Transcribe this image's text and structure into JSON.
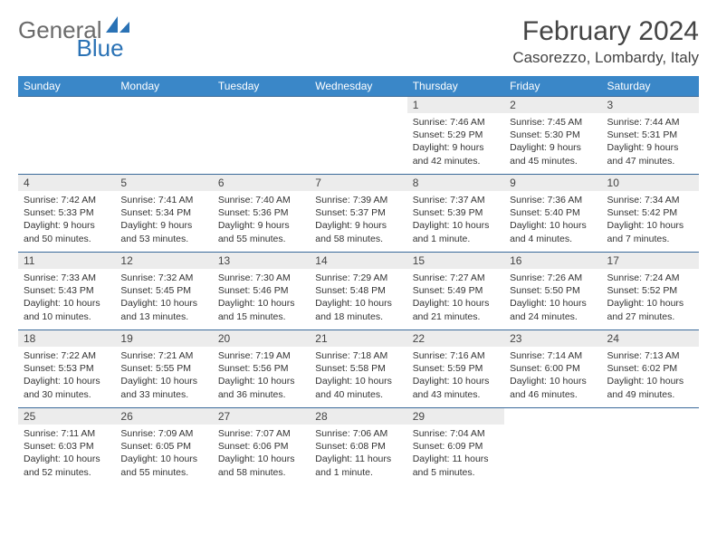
{
  "brand": {
    "part1": "General",
    "part2": "Blue"
  },
  "title": "February 2024",
  "location": "Casorezzo, Lombardy, Italy",
  "header_bg": "#3a87c8",
  "border_color": "#3a6a9a",
  "daynum_bg": "#ececec",
  "weekdays": [
    "Sunday",
    "Monday",
    "Tuesday",
    "Wednesday",
    "Thursday",
    "Friday",
    "Saturday"
  ],
  "weeks": [
    [
      null,
      null,
      null,
      null,
      {
        "n": "1",
        "sunrise": "7:46 AM",
        "sunset": "5:29 PM",
        "daylight": "9 hours and 42 minutes."
      },
      {
        "n": "2",
        "sunrise": "7:45 AM",
        "sunset": "5:30 PM",
        "daylight": "9 hours and 45 minutes."
      },
      {
        "n": "3",
        "sunrise": "7:44 AM",
        "sunset": "5:31 PM",
        "daylight": "9 hours and 47 minutes."
      }
    ],
    [
      {
        "n": "4",
        "sunrise": "7:42 AM",
        "sunset": "5:33 PM",
        "daylight": "9 hours and 50 minutes."
      },
      {
        "n": "5",
        "sunrise": "7:41 AM",
        "sunset": "5:34 PM",
        "daylight": "9 hours and 53 minutes."
      },
      {
        "n": "6",
        "sunrise": "7:40 AM",
        "sunset": "5:36 PM",
        "daylight": "9 hours and 55 minutes."
      },
      {
        "n": "7",
        "sunrise": "7:39 AM",
        "sunset": "5:37 PM",
        "daylight": "9 hours and 58 minutes."
      },
      {
        "n": "8",
        "sunrise": "7:37 AM",
        "sunset": "5:39 PM",
        "daylight": "10 hours and 1 minute."
      },
      {
        "n": "9",
        "sunrise": "7:36 AM",
        "sunset": "5:40 PM",
        "daylight": "10 hours and 4 minutes."
      },
      {
        "n": "10",
        "sunrise": "7:34 AM",
        "sunset": "5:42 PM",
        "daylight": "10 hours and 7 minutes."
      }
    ],
    [
      {
        "n": "11",
        "sunrise": "7:33 AM",
        "sunset": "5:43 PM",
        "daylight": "10 hours and 10 minutes."
      },
      {
        "n": "12",
        "sunrise": "7:32 AM",
        "sunset": "5:45 PM",
        "daylight": "10 hours and 13 minutes."
      },
      {
        "n": "13",
        "sunrise": "7:30 AM",
        "sunset": "5:46 PM",
        "daylight": "10 hours and 15 minutes."
      },
      {
        "n": "14",
        "sunrise": "7:29 AM",
        "sunset": "5:48 PM",
        "daylight": "10 hours and 18 minutes."
      },
      {
        "n": "15",
        "sunrise": "7:27 AM",
        "sunset": "5:49 PM",
        "daylight": "10 hours and 21 minutes."
      },
      {
        "n": "16",
        "sunrise": "7:26 AM",
        "sunset": "5:50 PM",
        "daylight": "10 hours and 24 minutes."
      },
      {
        "n": "17",
        "sunrise": "7:24 AM",
        "sunset": "5:52 PM",
        "daylight": "10 hours and 27 minutes."
      }
    ],
    [
      {
        "n": "18",
        "sunrise": "7:22 AM",
        "sunset": "5:53 PM",
        "daylight": "10 hours and 30 minutes."
      },
      {
        "n": "19",
        "sunrise": "7:21 AM",
        "sunset": "5:55 PM",
        "daylight": "10 hours and 33 minutes."
      },
      {
        "n": "20",
        "sunrise": "7:19 AM",
        "sunset": "5:56 PM",
        "daylight": "10 hours and 36 minutes."
      },
      {
        "n": "21",
        "sunrise": "7:18 AM",
        "sunset": "5:58 PM",
        "daylight": "10 hours and 40 minutes."
      },
      {
        "n": "22",
        "sunrise": "7:16 AM",
        "sunset": "5:59 PM",
        "daylight": "10 hours and 43 minutes."
      },
      {
        "n": "23",
        "sunrise": "7:14 AM",
        "sunset": "6:00 PM",
        "daylight": "10 hours and 46 minutes."
      },
      {
        "n": "24",
        "sunrise": "7:13 AM",
        "sunset": "6:02 PM",
        "daylight": "10 hours and 49 minutes."
      }
    ],
    [
      {
        "n": "25",
        "sunrise": "7:11 AM",
        "sunset": "6:03 PM",
        "daylight": "10 hours and 52 minutes."
      },
      {
        "n": "26",
        "sunrise": "7:09 AM",
        "sunset": "6:05 PM",
        "daylight": "10 hours and 55 minutes."
      },
      {
        "n": "27",
        "sunrise": "7:07 AM",
        "sunset": "6:06 PM",
        "daylight": "10 hours and 58 minutes."
      },
      {
        "n": "28",
        "sunrise": "7:06 AM",
        "sunset": "6:08 PM",
        "daylight": "11 hours and 1 minute."
      },
      {
        "n": "29",
        "sunrise": "7:04 AM",
        "sunset": "6:09 PM",
        "daylight": "11 hours and 5 minutes."
      },
      null,
      null
    ]
  ],
  "labels": {
    "sunrise": "Sunrise: ",
    "sunset": "Sunset: ",
    "daylight": "Daylight: "
  }
}
